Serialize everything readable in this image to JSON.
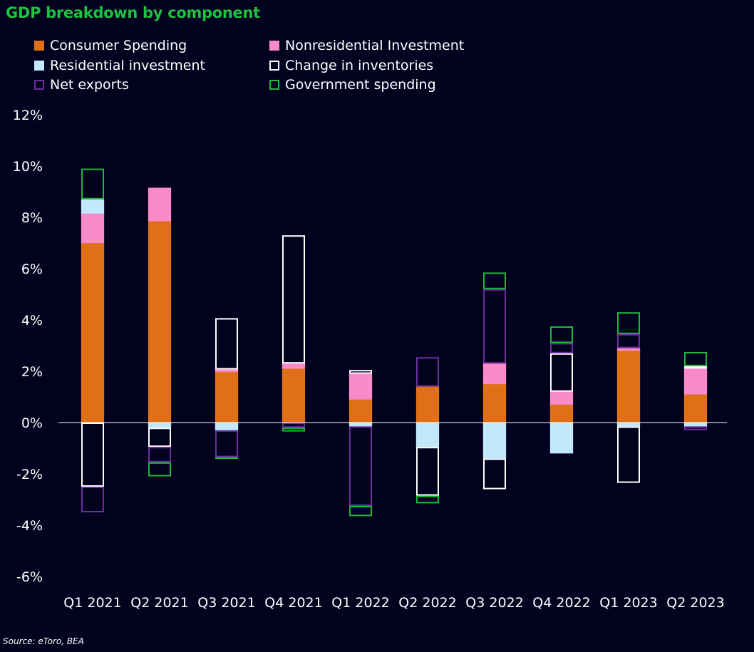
{
  "chart_data": {
    "type": "bar",
    "stacked": true,
    "title": "GDP breakdown by component",
    "source": "Source: eToro, BEA",
    "xlabel": "",
    "ylabel": "",
    "ylim": [
      -6,
      12
    ],
    "yticks": [
      12,
      10,
      8,
      6,
      4,
      2,
      0,
      -2,
      -4,
      -6
    ],
    "ytick_labels": [
      "12%",
      "10%",
      "8%",
      "6%",
      "4%",
      "2%",
      "0%",
      "-2%",
      "-4%",
      "-6%"
    ],
    "grid": false,
    "legend_position": "top-left",
    "categories": [
      "Q1 2021",
      "Q2 2021",
      "Q3 2021",
      "Q4 2021",
      "Q1 2022",
      "Q2 2022",
      "Q3 2022",
      "Q4 2022",
      "Q1 2023",
      "Q2 2023"
    ],
    "series": [
      {
        "name": "Consumer Spending",
        "style": "filled",
        "color": "#e07017",
        "values": [
          7.0,
          7.85,
          1.97,
          2.1,
          0.9,
          1.4,
          1.5,
          0.7,
          2.8,
          1.1
        ]
      },
      {
        "name": "Nonresidential Investment",
        "style": "filled",
        "color": "#f98bcb",
        "values": [
          1.15,
          1.3,
          0.1,
          0.2,
          1.0,
          0.0,
          0.8,
          0.5,
          0.1,
          1.0
        ]
      },
      {
        "name": "Residential investment",
        "style": "filled",
        "color": "#c2e8fb",
        "values": [
          0.55,
          -0.2,
          -0.3,
          0.0,
          -0.15,
          -0.95,
          -1.4,
          -1.2,
          -0.15,
          -0.15
        ]
      },
      {
        "name": "Change in inventories",
        "style": "outline",
        "color": "#ffffff",
        "values": [
          -2.5,
          -0.75,
          2.0,
          5.0,
          0.15,
          -1.9,
          -1.2,
          1.5,
          -2.2,
          0.1
        ]
      },
      {
        "name": "Net exports",
        "style": "outline",
        "color": "#6a2e9e",
        "values": [
          -1.0,
          -0.6,
          -1.05,
          -0.2,
          -3.1,
          1.15,
          2.9,
          0.4,
          0.55,
          -0.15
        ]
      },
      {
        "name": "Government spending",
        "style": "outline",
        "color": "#1fb83c",
        "values": [
          1.2,
          -0.55,
          -0.05,
          -0.15,
          -0.4,
          -0.3,
          0.65,
          0.65,
          0.85,
          0.55
        ]
      }
    ]
  },
  "colors": {
    "background": "#02021f",
    "title": "#1fc140",
    "text": "#ffffff",
    "zero_line": "#ffffff"
  }
}
